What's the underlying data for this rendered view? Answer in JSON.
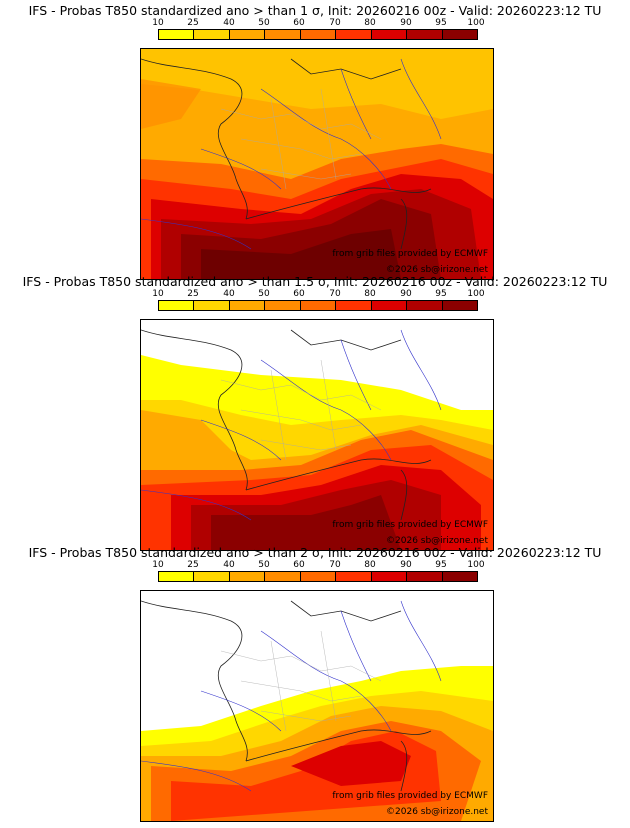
{
  "panels": [
    {
      "title": "IFS - Probas T850  standardized ano > than 1 σ, Init: 20260216 00z - Valid: 20260223:12 TU",
      "credit_source": "from grib files provided by ECMWF",
      "credit_copyright": "©2026 sb@irizone.net",
      "threshold_sigma": "1"
    },
    {
      "title": "IFS - Probas T850  standardized ano > than 1.5 σ, Init: 20260216 00z - Valid: 20260223:12 TU",
      "credit_source": "from grib files provided by ECMWF",
      "credit_copyright": "©2026 sb@irizone.net",
      "threshold_sigma": "1.5"
    },
    {
      "title": "IFS - Probas T850  standardized ano > than 2 σ, Init: 20260216 00z - Valid: 20260223:12 TU",
      "credit_source": "from grib files provided by ECMWF",
      "credit_copyright": "©2026 sb@irizone.net",
      "threshold_sigma": "2"
    }
  ],
  "colorbar": {
    "labels": [
      "10",
      "25",
      "40",
      "50",
      "60",
      "70",
      "80",
      "90",
      "95",
      "100"
    ],
    "colors": [
      "#ffff00",
      "#ffd700",
      "#ffaa00",
      "#ff8c00",
      "#ff6a00",
      "#ff3300",
      "#dd0000",
      "#b00000",
      "#8b0000",
      "#5c0000"
    ]
  },
  "colors": {
    "border": "#000000",
    "rivers": "#3333cc",
    "departments": "#aaaaaa",
    "coast": "#222222"
  }
}
